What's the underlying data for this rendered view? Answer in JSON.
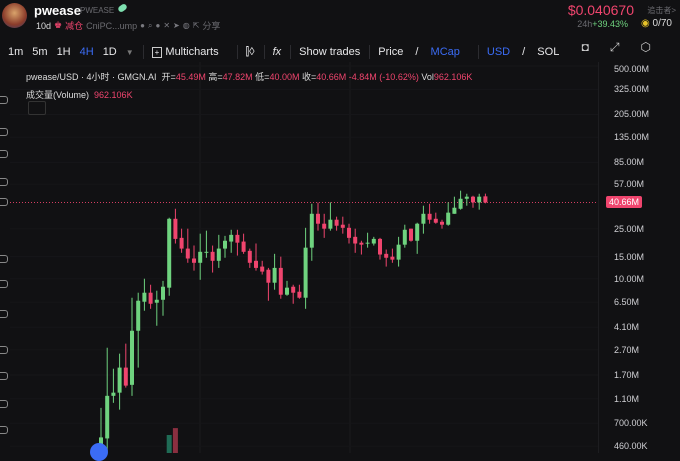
{
  "token": {
    "name": "pwease",
    "ticker": "PWEASE",
    "age": "10d",
    "tag": "减仓",
    "address": "CniPC...ump",
    "share": "分享"
  },
  "quote": {
    "price": "$0.040670",
    "chase": "追击者>",
    "change_label": "24h",
    "change": "+39.43%",
    "slots": "0/70"
  },
  "toolbar": {
    "intervals": [
      "1m",
      "5m",
      "1H",
      "4H",
      "1D"
    ],
    "active_interval": "4H",
    "multicharts": "Multicharts",
    "fx": "fx",
    "show_trades": "Show trades",
    "price": "Price",
    "mcap": "MCap",
    "usd": "USD",
    "sol": "SOL",
    "slash": "/"
  },
  "legend": {
    "pair": "pwease/USD · 4小时 · GMGN.AI",
    "o_label": "开=",
    "o": "45.49M",
    "h_label": "高=",
    "h": "47.82M",
    "l_label": "低=",
    "l": "40.00M",
    "c_label": "收=",
    "c": "40.66M",
    "change": "-4.84M (-10.62%)",
    "vol_label": "Vol",
    "vol": "962.106K",
    "volume_label": "成交量(Volume)",
    "volume": "962.106K"
  },
  "colors": {
    "up": "#6fd37f",
    "down": "#f0456e",
    "accent": "#3b6cf5",
    "background": "#111113"
  },
  "chart_data": {
    "type": "candlestick",
    "unit": "market cap (USD)",
    "scale": "log",
    "yticks": [
      "500.00M",
      "325.00M",
      "205.00M",
      "135.00M",
      "85.00M",
      "57.00M",
      "25.00M",
      "15.00M",
      "10.00M",
      "6.50M",
      "4.10M",
      "2.70M",
      "1.70M",
      "1.10M",
      "700.00K",
      "460.00K"
    ],
    "ytick_values": [
      500,
      325,
      205,
      135,
      85,
      57,
      25,
      15,
      10,
      6.5,
      4.1,
      2.7,
      1.7,
      1.1,
      0.7,
      0.46
    ],
    "current_label": "40.66M",
    "current_value": 40.66,
    "ylim": [
      0.4,
      520
    ],
    "ohlc_millions": [
      [
        0.41,
        0.93,
        0.41,
        0.54
      ],
      [
        0.53,
        2.81,
        0.42,
        1.16
      ],
      [
        1.16,
        1.91,
        1.02,
        1.23
      ],
      [
        1.23,
        2.52,
        0.9,
        1.95
      ],
      [
        1.95,
        3.03,
        1.35,
        1.4
      ],
      [
        1.42,
        7.05,
        1.16,
        3.84
      ],
      [
        3.84,
        7.73,
        1.95,
        6.67
      ],
      [
        6.55,
        10,
        5.55,
        7.73
      ],
      [
        7.73,
        8.95,
        5.75,
        6.31
      ],
      [
        6.43,
        8.02,
        4.21,
        6.79
      ],
      [
        6.79,
        9.6,
        5.06,
        8.63
      ],
      [
        8.48,
        30.7,
        7.31,
        30.1
      ],
      [
        30.1,
        36.2,
        19.1,
        20.8
      ],
      [
        21.2,
        25.1,
        16.1,
        17.4
      ],
      [
        17.4,
        25.1,
        13.4,
        14.5
      ],
      [
        14.5,
        18.4,
        11.6,
        13.4
      ],
      [
        13.4,
        22.9,
        9.8,
        16.4
      ],
      [
        16.1,
        24.2,
        14.7,
        16.4
      ],
      [
        16.4,
        18.4,
        11.2,
        13.9
      ],
      [
        13.9,
        22.4,
        12.2,
        17.4
      ],
      [
        17.4,
        22.0,
        14.7,
        20.1
      ],
      [
        19.8,
        24.6,
        16.1,
        22.4
      ],
      [
        22.4,
        24.6,
        15.3,
        19.4
      ],
      [
        19.8,
        22.9,
        15.8,
        16.4
      ],
      [
        16.7,
        17.4,
        12.2,
        13.4
      ],
      [
        13.9,
        19.1,
        11.6,
        12.2
      ],
      [
        12.5,
        13.9,
        10.8,
        11.4
      ],
      [
        11.8,
        12.2,
        6.67,
        9.29
      ],
      [
        9.29,
        15.8,
        8.17,
        12.2
      ],
      [
        12.2,
        15.0,
        6.92,
        7.45
      ],
      [
        7.45,
        9.6,
        7.31,
        8.48
      ],
      [
        8.63,
        8.95,
        6.31,
        7.73
      ],
      [
        7.87,
        8.95,
        6.92,
        7.05
      ],
      [
        7.05,
        25.5,
        5.75,
        17.7
      ],
      [
        17.7,
        39.7,
        13.9,
        33.0
      ],
      [
        33.0,
        40.5,
        24.2,
        27.5
      ],
      [
        27.5,
        33.0,
        21.2,
        25.1
      ],
      [
        25.1,
        40.7,
        24.2,
        29.6
      ],
      [
        29.6,
        31.3,
        24.2,
        26.5
      ],
      [
        27.0,
        31.3,
        22.9,
        25.5
      ],
      [
        25.5,
        27.5,
        19.1,
        21.2
      ],
      [
        21.6,
        25.1,
        16.1,
        19.1
      ],
      [
        19.4,
        20.1,
        15.6,
        18.7
      ],
      [
        19.1,
        23.3,
        17.7,
        19.4
      ],
      [
        19.1,
        21.6,
        18.4,
        20.8
      ],
      [
        20.8,
        21.2,
        14.2,
        15.6
      ],
      [
        15.8,
        17.1,
        12.5,
        14.7
      ],
      [
        15.0,
        17.4,
        13.4,
        14.2
      ],
      [
        14.2,
        21.6,
        12.5,
        18.7
      ],
      [
        18.7,
        27.0,
        17.7,
        24.6
      ],
      [
        25.1,
        25.1,
        19.8,
        20.1
      ],
      [
        20.1,
        28.0,
        15.8,
        27.5
      ],
      [
        27.5,
        38.3,
        22.9,
        33.0
      ],
      [
        33.0,
        39.7,
        27.5,
        29.6
      ],
      [
        30.1,
        33.7,
        27.5,
        28.0
      ],
      [
        28.5,
        29.6,
        25.1,
        27.0
      ],
      [
        27.0,
        40.7,
        26.5,
        33.7
      ],
      [
        33.0,
        45.2,
        33.0,
        36.9
      ],
      [
        36.2,
        50.5,
        35.6,
        43.5
      ],
      [
        43.5,
        47.7,
        38.3,
        45.2
      ],
      [
        45.2,
        46.0,
        36.9,
        40.7
      ],
      [
        40.7,
        47.7,
        35.6,
        45.2
      ],
      [
        45.49,
        47.82,
        40.0,
        40.66
      ]
    ],
    "volume_visible_k": {
      "11": 600,
      "12": 830
    }
  }
}
